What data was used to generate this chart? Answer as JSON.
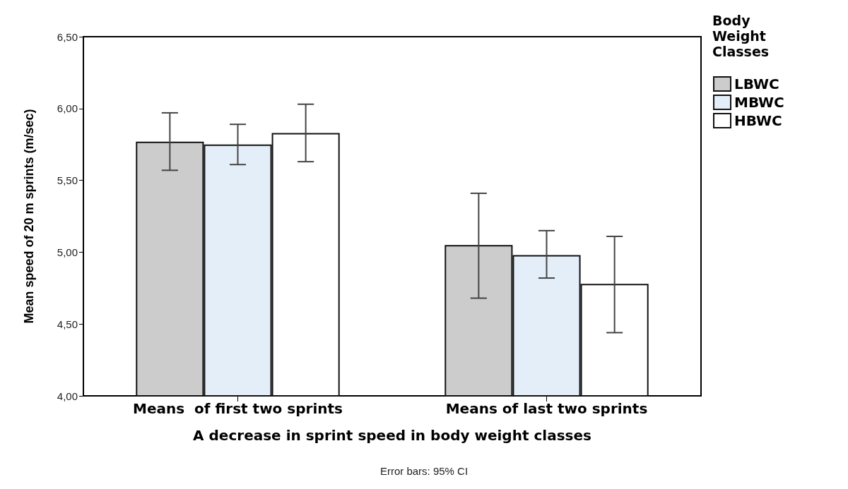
{
  "chart_data": {
    "type": "bar",
    "xlabel": "A decrease in sprint speed in body weight classes",
    "ylabel": "Mean speed of 20 m sprints (m/sec)",
    "legend_title": "Body Weight Classes",
    "annotations": [
      "Error bars: 95% CI"
    ],
    "categories": [
      "Means  of first two sprints",
      "Means of last two sprints"
    ],
    "series": [
      {
        "name": "LBWC",
        "color": "#cccccc",
        "values": [
          5.77,
          5.05
        ],
        "errors": [
          [
            5.57,
            5.97
          ],
          [
            4.68,
            5.41
          ]
        ]
      },
      {
        "name": "MBWC",
        "color": "#e3eef9",
        "values": [
          5.75,
          4.98
        ],
        "errors": [
          [
            5.61,
            5.89
          ],
          [
            4.82,
            5.15
          ]
        ]
      },
      {
        "name": "HBWC",
        "color": "#ffffff",
        "values": [
          5.83,
          4.78
        ],
        "errors": [
          [
            5.63,
            6.03
          ],
          [
            4.44,
            5.11
          ]
        ]
      }
    ],
    "ylim": [
      4,
      6.5
    ],
    "yticks": [
      {
        "value": 4,
        "label": "4,00"
      },
      {
        "value": 4.5,
        "label": "4,50"
      },
      {
        "value": 5,
        "label": "5,00"
      },
      {
        "value": 5.5,
        "label": "5,50"
      },
      {
        "value": 6,
        "label": "6,00"
      },
      {
        "value": 6.5,
        "label": "6,50"
      }
    ],
    "grid": false,
    "legend": "right"
  }
}
